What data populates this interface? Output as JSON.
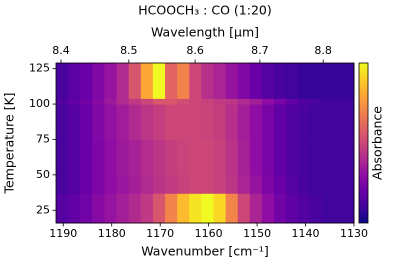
{
  "chart_data": {
    "type": "heatmap",
    "title": "HCOOCH₃ : CO (1:20)",
    "xlabel": "Wavenumber [cm⁻¹]",
    "x2label": "Wavelength [μm]",
    "ylabel": "Temperature [K]",
    "colorbar_label": "Absorbance",
    "colormap": "plasma",
    "xlim": [
      1191.5,
      1130
    ],
    "xticks": [
      1190,
      1180,
      1170,
      1160,
      1150,
      1140,
      1130
    ],
    "x2ticks": [
      8.4,
      8.5,
      8.6,
      8.7,
      8.8
    ],
    "ylim": [
      16,
      129
    ],
    "yticks": [
      25,
      50,
      75,
      100,
      125
    ],
    "x_bins": [
      1191.5,
      1189.0,
      1186.5,
      1184.0,
      1181.5,
      1179.0,
      1176.5,
      1174.0,
      1171.5,
      1169.0,
      1166.5,
      1164.0,
      1161.5,
      1159.0,
      1156.5,
      1154.0,
      1151.5,
      1149.0,
      1146.5,
      1144.0,
      1141.5,
      1139.0,
      1136.5,
      1134.0,
      1131.5,
      1130
    ],
    "y_bins": [
      16,
      37,
      50,
      75,
      100,
      104,
      129
    ],
    "z": [
      [
        0.15,
        0.18,
        0.22,
        0.28,
        0.32,
        0.36,
        0.4,
        0.45,
        0.55,
        0.7,
        0.85,
        0.95,
        1.0,
        0.92,
        0.7,
        0.5,
        0.38,
        0.3,
        0.22,
        0.17,
        0.14,
        0.12,
        0.1,
        0.1,
        0.1
      ],
      [
        0.12,
        0.15,
        0.2,
        0.25,
        0.3,
        0.33,
        0.36,
        0.4,
        0.43,
        0.46,
        0.48,
        0.5,
        0.5,
        0.48,
        0.44,
        0.38,
        0.32,
        0.25,
        0.2,
        0.15,
        0.12,
        0.1,
        0.1,
        0.1,
        0.1
      ],
      [
        0.12,
        0.15,
        0.2,
        0.25,
        0.3,
        0.34,
        0.37,
        0.41,
        0.44,
        0.47,
        0.49,
        0.5,
        0.5,
        0.48,
        0.43,
        0.37,
        0.3,
        0.24,
        0.18,
        0.14,
        0.12,
        0.1,
        0.1,
        0.1,
        0.1
      ],
      [
        0.12,
        0.15,
        0.2,
        0.26,
        0.31,
        0.35,
        0.4,
        0.44,
        0.47,
        0.5,
        0.5,
        0.5,
        0.49,
        0.47,
        0.42,
        0.36,
        0.3,
        0.24,
        0.18,
        0.14,
        0.12,
        0.1,
        0.1,
        0.1,
        0.1
      ],
      [
        0.14,
        0.18,
        0.22,
        0.28,
        0.34,
        0.4,
        0.45,
        0.5,
        0.55,
        0.55,
        0.52,
        0.5,
        0.48,
        0.46,
        0.44,
        0.4,
        0.36,
        0.3,
        0.24,
        0.18,
        0.14,
        0.12,
        0.1,
        0.1,
        0.1
      ],
      [
        0.12,
        0.16,
        0.2,
        0.26,
        0.32,
        0.4,
        0.55,
        0.8,
        1.0,
        0.6,
        0.7,
        0.5,
        0.42,
        0.38,
        0.32,
        0.26,
        0.2,
        0.15,
        0.12,
        0.1,
        0.08,
        0.08,
        0.08,
        0.08,
        0.08
      ]
    ]
  }
}
